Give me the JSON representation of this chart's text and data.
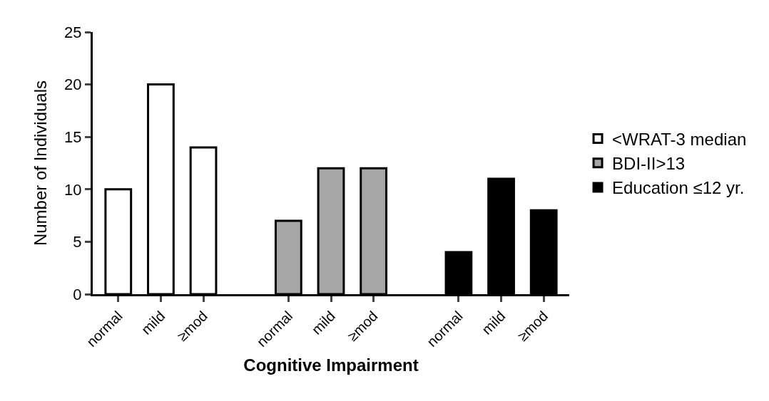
{
  "chart_data": {
    "type": "bar",
    "xlabel": "Cognitive Impairment",
    "ylabel": "Number of Individuals",
    "categories": [
      "normal",
      "mild",
      "≥mod",
      null,
      "normal",
      "mild",
      "≥mod",
      null,
      "normal",
      "mild",
      "≥mod"
    ],
    "series": [
      {
        "name": "<WRAT-3 median",
        "color": "#ffffff",
        "values": [
          10,
          20,
          14,
          null,
          null,
          null,
          null,
          null,
          null,
          null,
          null
        ]
      },
      {
        "name": "BDI-II>13",
        "color": "#a6a6a6",
        "values": [
          null,
          null,
          null,
          null,
          7,
          12,
          12,
          null,
          null,
          null,
          null
        ]
      },
      {
        "name": "Education ≤12 yr.",
        "color": "#000000",
        "values": [
          null,
          null,
          null,
          null,
          null,
          null,
          null,
          null,
          4,
          11,
          8
        ]
      }
    ],
    "ylim": [
      0,
      25
    ],
    "yticks": [
      0,
      5,
      10,
      15,
      20,
      25
    ],
    "legend": "right"
  }
}
